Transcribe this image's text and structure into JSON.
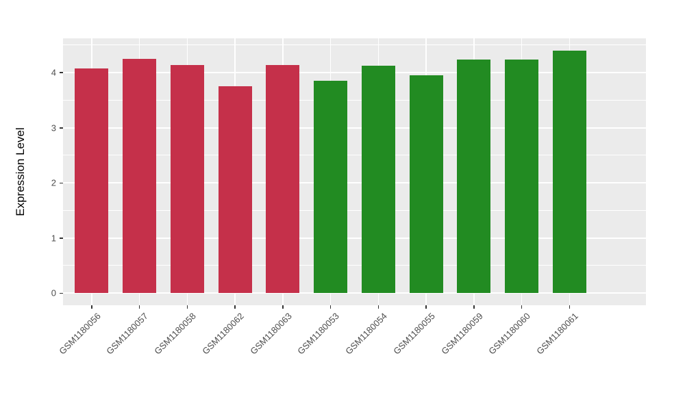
{
  "chart_data": {
    "type": "bar",
    "title": "",
    "xlabel": "",
    "ylabel": "Expression Level",
    "categories": [
      "GSM1180056",
      "GSM1180057",
      "GSM1180058",
      "GSM1180062",
      "GSM1180063",
      "GSM1180053",
      "GSM1180054",
      "GSM1180055",
      "GSM1180059",
      "GSM1180060",
      "GSM1180061"
    ],
    "values": [
      4.08,
      4.25,
      4.14,
      3.75,
      4.14,
      3.85,
      4.12,
      3.95,
      4.24,
      4.23,
      4.4
    ],
    "bar_colors": [
      "#C5304A",
      "#C5304A",
      "#C5304A",
      "#C5304A",
      "#C5304A",
      "#228B22",
      "#228B22",
      "#228B22",
      "#228B22",
      "#228B22",
      "#228B22"
    ],
    "groups": [
      {
        "name": "red-group",
        "color": "#C5304A",
        "categories": [
          "GSM1180056",
          "GSM1180057",
          "GSM1180058",
          "GSM1180062",
          "GSM1180063"
        ]
      },
      {
        "name": "green-group",
        "color": "#228B22",
        "categories": [
          "GSM1180053",
          "GSM1180054",
          "GSM1180055",
          "GSM1180059",
          "GSM1180060",
          "GSM1180061"
        ]
      }
    ],
    "yticks": [
      "0",
      "1",
      "2",
      "3",
      "4"
    ],
    "ylim": [
      0,
      4.4
    ],
    "bar_width_fraction": 0.7,
    "grid": "on",
    "legend": "none",
    "panel_bg": "#EBEBEB",
    "grid_color": "#FFFFFF",
    "tick_color": "#333333",
    "axis_text_color": "#4D4D4D"
  }
}
